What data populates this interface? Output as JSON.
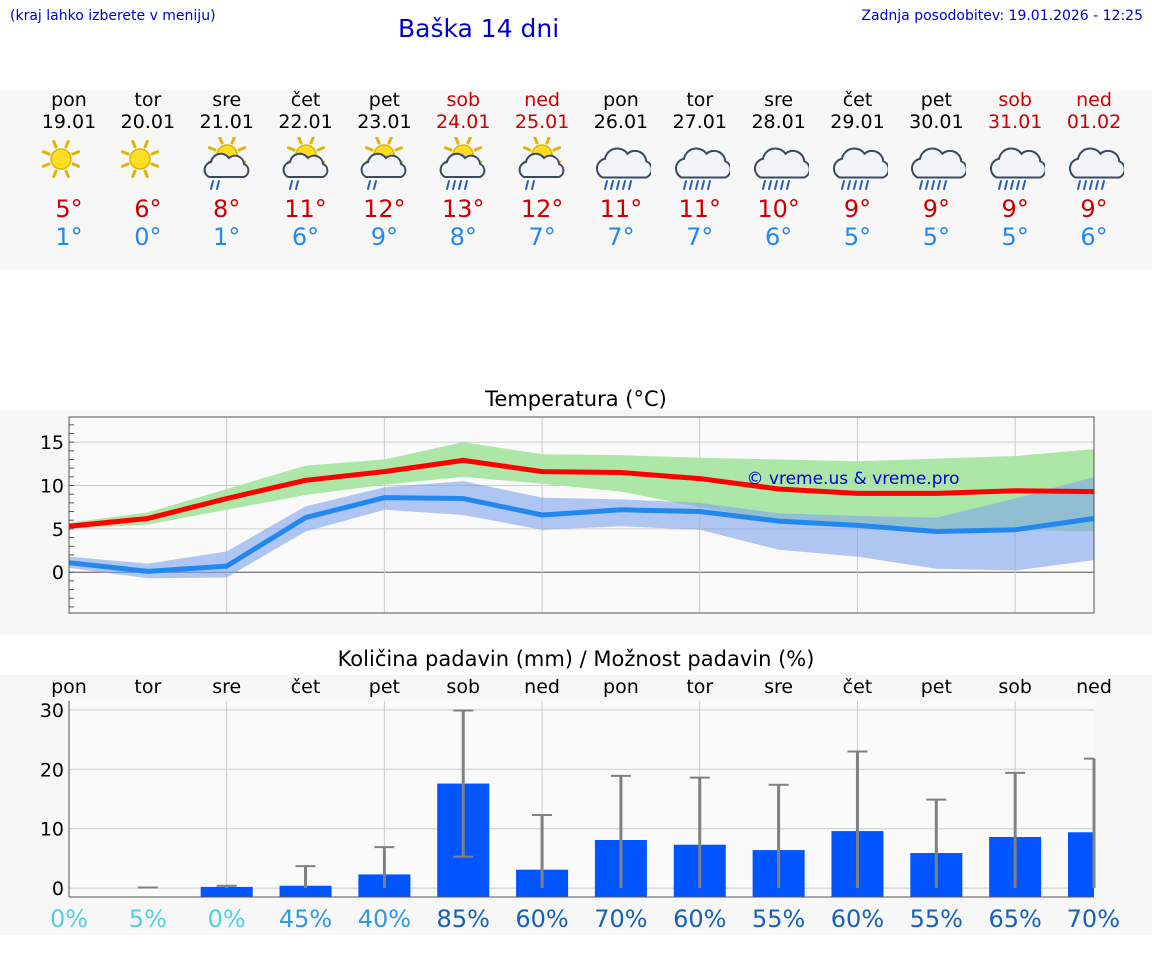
{
  "header": {
    "hint": "(kraj lahko izberete v meniju)",
    "title": "Baška 14 dni",
    "updated": "Zadnja posodobitev: 19.01.2026 - 12:25"
  },
  "days": [
    {
      "name": "pon",
      "date": "19.01",
      "weekend": false,
      "icon": "sun-icon",
      "tmax": "5°",
      "tmin": "1°"
    },
    {
      "name": "tor",
      "date": "20.01",
      "weekend": false,
      "icon": "sun-icon",
      "tmax": "6°",
      "tmin": "0°"
    },
    {
      "name": "sre",
      "date": "21.01",
      "weekend": false,
      "icon": "sun-cloud-rain-icon",
      "tmax": "8°",
      "tmin": "1°"
    },
    {
      "name": "čet",
      "date": "22.01",
      "weekend": false,
      "icon": "sun-cloud-rain-icon",
      "tmax": "11°",
      "tmin": "6°"
    },
    {
      "name": "pet",
      "date": "23.01",
      "weekend": false,
      "icon": "sun-cloud-rain-icon",
      "tmax": "12°",
      "tmin": "9°"
    },
    {
      "name": "sob",
      "date": "24.01",
      "weekend": true,
      "icon": "sun-cloud-heavy-rain-icon",
      "tmax": "13°",
      "tmin": "8°"
    },
    {
      "name": "ned",
      "date": "25.01",
      "weekend": true,
      "icon": "sun-cloud-rain-icon",
      "tmax": "12°",
      "tmin": "7°"
    },
    {
      "name": "pon",
      "date": "26.01",
      "weekend": false,
      "icon": "cloud-rain-icon",
      "tmax": "11°",
      "tmin": "7°"
    },
    {
      "name": "tor",
      "date": "27.01",
      "weekend": false,
      "icon": "cloud-rain-icon",
      "tmax": "11°",
      "tmin": "7°"
    },
    {
      "name": "sre",
      "date": "28.01",
      "weekend": false,
      "icon": "cloud-rain-icon",
      "tmax": "10°",
      "tmin": "6°"
    },
    {
      "name": "čet",
      "date": "29.01",
      "weekend": false,
      "icon": "cloud-rain-icon",
      "tmax": "9°",
      "tmin": "5°"
    },
    {
      "name": "pet",
      "date": "30.01",
      "weekend": false,
      "icon": "cloud-rain-icon",
      "tmax": "9°",
      "tmin": "5°"
    },
    {
      "name": "sob",
      "date": "31.01",
      "weekend": true,
      "icon": "cloud-rain-icon",
      "tmax": "9°",
      "tmin": "5°"
    },
    {
      "name": "ned",
      "date": "01.02",
      "weekend": true,
      "icon": "cloud-rain-icon",
      "tmax": "9°",
      "tmin": "6°"
    }
  ],
  "colors": {
    "title_blue": "#0000cc",
    "weekend_red": "#cc0000",
    "tmax_line": "#ff0000",
    "tmin_line": "#2288ee",
    "tmax_band": "#a8e6a2",
    "tmin_band": "#a6bff2",
    "overlap_band": "#7cc4a6",
    "precip_bar": "#0055ff",
    "error_bar": "#808080",
    "watermark": "#0000cc"
  },
  "chart_data": [
    {
      "type": "line",
      "title": "Temperatura (°C)",
      "watermark": "© vreme.us & vreme.pro",
      "xlabel": "",
      "ylabel": "",
      "ylim": [
        -4.7,
        17.9
      ],
      "yticks": [
        0,
        5,
        10,
        15
      ],
      "x": [
        0,
        1,
        2,
        3,
        4,
        5,
        6,
        7,
        8,
        9,
        10,
        11,
        12,
        13
      ],
      "series": [
        {
          "name": "tmax",
          "values": [
            5.3,
            6.2,
            8.5,
            10.6,
            11.6,
            12.9,
            11.6,
            11.5,
            10.8,
            9.6,
            9.1,
            9.1,
            9.4,
            9.3
          ]
        },
        {
          "name": "tmin",
          "values": [
            1.1,
            0.1,
            0.7,
            6.3,
            8.6,
            8.5,
            6.6,
            7.2,
            7.0,
            5.9,
            5.4,
            4.7,
            4.9,
            6.2
          ]
        }
      ],
      "bands": [
        {
          "name": "tmax_range",
          "low": [
            5.0,
            5.5,
            7.2,
            8.9,
            10.1,
            11.0,
            10.2,
            9.3,
            7.5,
            6.0,
            5.2,
            5.0,
            4.9,
            4.7
          ],
          "high": [
            5.7,
            6.9,
            9.6,
            12.3,
            13.0,
            15.0,
            13.6,
            13.5,
            13.2,
            13.0,
            12.8,
            13.1,
            13.4,
            14.2
          ]
        },
        {
          "name": "tmin_range",
          "low": [
            0.5,
            -0.7,
            -0.6,
            4.7,
            7.2,
            6.6,
            4.9,
            5.3,
            4.9,
            2.6,
            1.8,
            0.4,
            0.2,
            1.4
          ],
          "high": [
            1.8,
            1.0,
            2.4,
            7.6,
            9.8,
            10.5,
            8.6,
            8.4,
            8.0,
            6.8,
            6.5,
            6.3,
            8.5,
            11.0
          ]
        }
      ]
    },
    {
      "type": "bar",
      "title": "Količina padavin (mm) / Možnost padavin (%)",
      "categories": [
        "pon",
        "tor",
        "sre",
        "čet",
        "pet",
        "sob",
        "ned",
        "pon",
        "tor",
        "sre",
        "čet",
        "pet",
        "sob",
        "ned"
      ],
      "ylim": [
        -1.5,
        31.5
      ],
      "yticks": [
        0,
        10,
        20,
        30
      ],
      "values": [
        0,
        0,
        0.2,
        0.4,
        2.3,
        17.6,
        3.1,
        8.1,
        7.3,
        6.4,
        9.6,
        5.9,
        8.6,
        9.4
      ],
      "error_high": [
        0,
        0.1,
        0.4,
        3.7,
        6.9,
        29.9,
        12.3,
        18.9,
        18.6,
        17.4,
        23.0,
        14.9,
        19.4,
        21.8
      ],
      "error_low": [
        0,
        0,
        0,
        0,
        0,
        5.3,
        0,
        0,
        0,
        0,
        0,
        0,
        0,
        0
      ],
      "probability": [
        "0%",
        "5%",
        "0%",
        "45%",
        "40%",
        "85%",
        "60%",
        "70%",
        "60%",
        "55%",
        "60%",
        "55%",
        "65%",
        "70%"
      ],
      "probability_colors": [
        "#4fd3e0",
        "#4fd3e0",
        "#4fd3e0",
        "#3399dd",
        "#3399dd",
        "#1560b8",
        "#1560b8",
        "#1560b8",
        "#1560b8",
        "#1560b8",
        "#1560b8",
        "#1560b8",
        "#1560b8",
        "#1560b8"
      ]
    }
  ]
}
